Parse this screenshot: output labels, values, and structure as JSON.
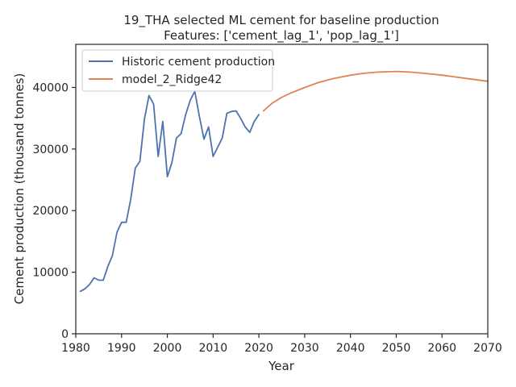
{
  "chart_data": {
    "type": "line",
    "title_line1": "19_THA selected ML cement for baseline production",
    "title_line2": "Features: ['cement_lag_1', 'pop_lag_1']",
    "xlabel": "Year",
    "ylabel": "Cement production (thousand tonnes)",
    "xlim": [
      1980,
      2070
    ],
    "ylim": [
      0,
      47000
    ],
    "xticks": [
      1980,
      1990,
      2000,
      2010,
      2020,
      2030,
      2040,
      2050,
      2060,
      2070
    ],
    "yticks": [
      0,
      10000,
      20000,
      30000,
      40000
    ],
    "grid": false,
    "legend_position": "upper-left",
    "series": [
      {
        "name": "Historic cement production",
        "color": "#4c72b0",
        "x": [
          1981,
          1982,
          1983,
          1984,
          1985,
          1986,
          1987,
          1988,
          1989,
          1990,
          1991,
          1992,
          1993,
          1994,
          1995,
          1996,
          1997,
          1998,
          1999,
          2000,
          2001,
          2002,
          2003,
          2004,
          2005,
          2006,
          2007,
          2008,
          2009,
          2010,
          2011,
          2012,
          2013,
          2014,
          2015,
          2016,
          2017,
          2018,
          2019,
          2020
        ],
        "y": [
          6900,
          7300,
          8000,
          9100,
          8700,
          8700,
          10900,
          12700,
          16500,
          18100,
          18100,
          21800,
          26900,
          28000,
          34900,
          38700,
          37300,
          28800,
          34500,
          25500,
          27800,
          31800,
          32500,
          35600,
          37900,
          39400,
          35300,
          31600,
          33600,
          28800,
          30300,
          31800,
          35800,
          36100,
          36200,
          35000,
          33600,
          32700,
          34500,
          35600
        ]
      },
      {
        "name": "model_2_Ridge42",
        "color": "#dd8452",
        "x": [
          2021,
          2023,
          2025,
          2027,
          2030,
          2033,
          2036,
          2040,
          2043,
          2046,
          2050,
          2053,
          2056,
          2060,
          2063,
          2066,
          2070
        ],
        "y": [
          36200,
          37500,
          38400,
          39100,
          40000,
          40800,
          41400,
          42000,
          42300,
          42500,
          42600,
          42500,
          42300,
          42000,
          41700,
          41400,
          41000
        ]
      }
    ]
  }
}
